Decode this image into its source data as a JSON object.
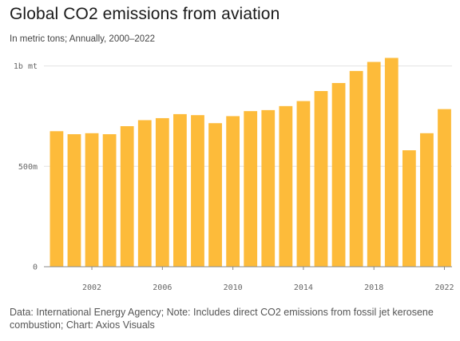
{
  "header": {
    "title": "Global CO2 emissions from aviation",
    "subtitle": "In metric tons; Annually, 2000–2022"
  },
  "footer": {
    "note": "Data: International Energy Agency; Note: Includes direct CO2 emissions from fossil jet kerosene combustion; Chart: Axios Visuals"
  },
  "colors": {
    "bar": "#FDBB3A",
    "grid": "#e3e3e3",
    "axis": "#888888"
  },
  "chart_data": {
    "type": "bar",
    "title": "Global CO2 emissions from aviation",
    "subtitle": "In metric tons; Annually, 2000–2022",
    "xlabel": "",
    "ylabel": "",
    "x": [
      2000,
      2001,
      2002,
      2003,
      2004,
      2005,
      2006,
      2007,
      2008,
      2009,
      2010,
      2011,
      2012,
      2013,
      2014,
      2015,
      2016,
      2017,
      2018,
      2019,
      2020,
      2021,
      2022
    ],
    "values": [
      675000000,
      660000000,
      665000000,
      660000000,
      700000000,
      730000000,
      740000000,
      760000000,
      755000000,
      715000000,
      750000000,
      775000000,
      780000000,
      800000000,
      825000000,
      875000000,
      915000000,
      975000000,
      1020000000,
      1040000000,
      580000000,
      665000000,
      785000000
    ],
    "x_ticks": [
      2002,
      2006,
      2010,
      2014,
      2018,
      2022
    ],
    "x_tick_labels": [
      "2002",
      "2006",
      "2010",
      "2014",
      "2018",
      "2022"
    ],
    "y_ticks": [
      0,
      500000000,
      1000000000
    ],
    "y_tick_labels": [
      "0",
      "500m",
      "1b mt"
    ],
    "ylim": [
      0,
      1050000000
    ],
    "grid": true
  }
}
